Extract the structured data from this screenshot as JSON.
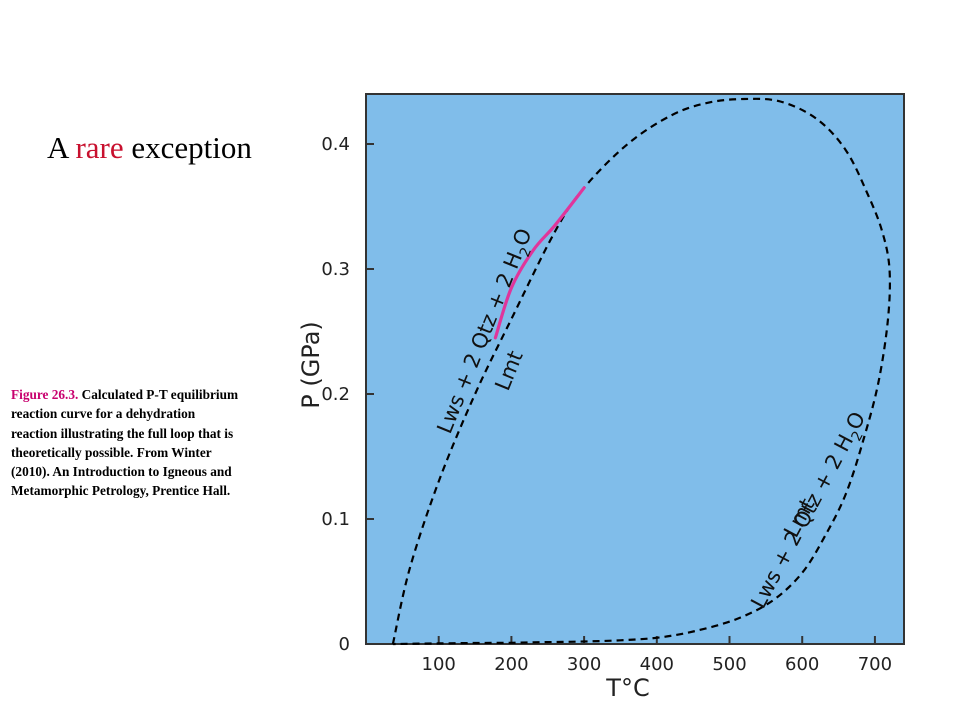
{
  "slide": {
    "title_part1": "A ",
    "title_accent": "rare",
    "title_part2": " exception",
    "accent_color": "#c8102e"
  },
  "caption": {
    "label": "Figure 26.3.",
    "text": " Calculated P-T equilibrium reaction curve for a dehydration reaction illustrating the full loop that is theoretically possible. From Winter (2010). An Introduction to Igneous and Metamorphic Petrology, Prentice Hall.",
    "label_color": "#c8006e"
  },
  "chart_data": {
    "type": "line",
    "title": "",
    "xlabel": "T°C",
    "ylabel": "P (GPa)",
    "xlim": [
      0,
      740
    ],
    "ylim": [
      0,
      0.44
    ],
    "xticks": [
      100,
      200,
      300,
      400,
      500,
      600,
      700
    ],
    "yticks": [
      0,
      0.1,
      0.2,
      0.3,
      0.4
    ],
    "xtick_labels": [
      "100",
      "200",
      "300",
      "400",
      "500",
      "600",
      "700"
    ],
    "ytick_labels": [
      "0",
      "0.1",
      "0.2",
      "0.3",
      "0.4"
    ],
    "plot_background": "#80bdea",
    "grid": false,
    "series": [
      {
        "style": "dashed",
        "color": "#000000",
        "x": [
          37,
          60,
          100,
          150,
          200,
          260,
          300,
          360,
          420,
          470,
          520,
          570,
          620,
          660,
          690,
          710,
          720,
          718,
          705,
          685,
          660,
          630,
          600,
          560,
          510,
          450,
          400,
          350,
          300,
          250,
          200,
          150,
          100,
          60,
          37
        ],
        "y": [
          0.0,
          0.06,
          0.13,
          0.2,
          0.26,
          0.33,
          0.365,
          0.4,
          0.423,
          0.433,
          0.436,
          0.434,
          0.42,
          0.395,
          0.36,
          0.33,
          0.3,
          0.26,
          0.21,
          0.165,
          0.12,
          0.085,
          0.057,
          0.035,
          0.02,
          0.01,
          0.005,
          0.003,
          0.002,
          0.0015,
          0.001,
          0.0008,
          0.0005,
          0.0002,
          0.0
        ]
      },
      {
        "style": "solid",
        "color": "#e0359b",
        "x": [
          178,
          200,
          230,
          260,
          300
        ],
        "y": [
          0.245,
          0.285,
          0.315,
          0.335,
          0.365
        ]
      }
    ],
    "annotations": [
      {
        "text": "Lws + 2 Qtz + 2 H",
        "subscript": "2",
        "suffix": "O",
        "x": 160,
        "y": 0.26
      },
      {
        "text": "Lmt",
        "x": 172,
        "y": 0.23
      },
      {
        "text": "Lmt",
        "x": 565,
        "y": 0.09
      },
      {
        "text": "Lws + 2 Qtz + 2 H",
        "subscript": "2",
        "suffix": "O",
        "x": 610,
        "y": 0.09
      }
    ]
  }
}
